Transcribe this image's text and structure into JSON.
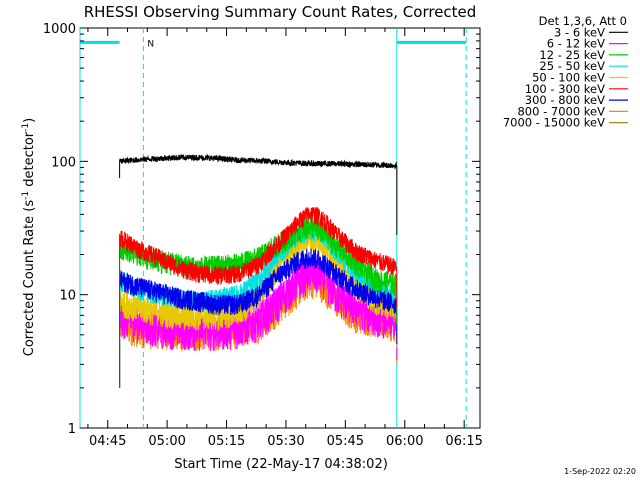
{
  "chart_data": {
    "type": "line",
    "title": "RHESSI Observing Summary Count Rates, Corrected",
    "xlabel": "Start Time (22-May-17 04:38:02)",
    "ylabel": "Corrected Count Rate (s⁻¹ detector⁻¹)",
    "ylabel_parts": [
      "Corrected Count Rate (s",
      "-1",
      " detector",
      "-1",
      ")"
    ],
    "yscale": "log",
    "ylim": [
      1,
      1000
    ],
    "y_tick_labels": [
      "1",
      "10",
      "100",
      "1000"
    ],
    "x_range_min": [
      0,
      101
    ],
    "x_ticks_min": [
      7,
      22,
      37,
      52,
      67,
      82,
      97
    ],
    "x_tick_labels": [
      "04:45",
      "05:00",
      "05:15",
      "05:30",
      "05:45",
      "06:00",
      "06:15"
    ],
    "legend_header": "Det 1,3,6, Att 0",
    "legend_position": "top-right",
    "footer_date": "1-Sep-2022 02:20",
    "night_marker": "N",
    "data_start_min": 10,
    "data_end_min": 80,
    "night_intervals_min": [
      [
        0,
        10
      ],
      [
        80,
        97.5
      ]
    ],
    "saa_lines_min": [
      16,
      97.5
    ],
    "series": [
      {
        "name": "3 - 6 keV",
        "color": "#000000",
        "points": [
          [
            10,
            100
          ],
          [
            15,
            103
          ],
          [
            20,
            105
          ],
          [
            25,
            107
          ],
          [
            30,
            107
          ],
          [
            35,
            105
          ],
          [
            40,
            102
          ],
          [
            45,
            101
          ],
          [
            50,
            99
          ],
          [
            55,
            97
          ],
          [
            60,
            96
          ],
          [
            65,
            96
          ],
          [
            70,
            95
          ],
          [
            75,
            94
          ],
          [
            80,
            93
          ]
        ]
      },
      {
        "name": "6 - 12 keV",
        "color": "#ff00ff",
        "points": [
          [
            10,
            7
          ],
          [
            15,
            6.2
          ],
          [
            20,
            5.8
          ],
          [
            25,
            5.6
          ],
          [
            30,
            5.5
          ],
          [
            35,
            5.5
          ],
          [
            40,
            5.7
          ],
          [
            45,
            6.5
          ],
          [
            50,
            9
          ],
          [
            55,
            13
          ],
          [
            58,
            15
          ],
          [
            61,
            14
          ],
          [
            65,
            10
          ],
          [
            70,
            8
          ],
          [
            75,
            7
          ],
          [
            80,
            6.5
          ]
        ]
      },
      {
        "name": "12 - 25 keV",
        "color": "#00cc00",
        "points": [
          [
            10,
            23
          ],
          [
            15,
            20
          ],
          [
            20,
            18
          ],
          [
            25,
            17
          ],
          [
            30,
            16
          ],
          [
            35,
            16.5
          ],
          [
            40,
            17
          ],
          [
            45,
            19
          ],
          [
            50,
            24
          ],
          [
            55,
            30
          ],
          [
            58,
            33
          ],
          [
            61,
            30
          ],
          [
            65,
            23
          ],
          [
            70,
            17
          ],
          [
            75,
            13
          ],
          [
            80,
            12
          ]
        ]
      },
      {
        "name": "25 - 50 keV",
        "color": "#00e0e0",
        "points": [
          [
            10,
            13
          ],
          [
            15,
            11
          ],
          [
            20,
            10
          ],
          [
            25,
            9.5
          ],
          [
            30,
            9
          ],
          [
            35,
            9.5
          ],
          [
            40,
            10
          ],
          [
            45,
            13
          ],
          [
            50,
            20
          ],
          [
            55,
            28
          ],
          [
            58,
            31
          ],
          [
            61,
            29
          ],
          [
            65,
            21
          ],
          [
            70,
            14
          ],
          [
            75,
            11
          ],
          [
            80,
            10
          ]
        ]
      },
      {
        "name": "50 - 100 keV",
        "color": "#e8c800",
        "points": [
          [
            10,
            9
          ],
          [
            15,
            8
          ],
          [
            20,
            7.5
          ],
          [
            25,
            7
          ],
          [
            30,
            7
          ],
          [
            35,
            7
          ],
          [
            40,
            7.5
          ],
          [
            45,
            10
          ],
          [
            50,
            16
          ],
          [
            55,
            24
          ],
          [
            58,
            27
          ],
          [
            61,
            25
          ],
          [
            65,
            18
          ],
          [
            70,
            12
          ],
          [
            75,
            9
          ],
          [
            80,
            8
          ]
        ]
      },
      {
        "name": "100 - 300 keV",
        "color": "#ff0000",
        "points": [
          [
            10,
            27
          ],
          [
            15,
            22
          ],
          [
            20,
            19
          ],
          [
            25,
            16
          ],
          [
            30,
            14.5
          ],
          [
            35,
            14
          ],
          [
            40,
            14.5
          ],
          [
            45,
            17
          ],
          [
            50,
            24
          ],
          [
            55,
            35
          ],
          [
            58,
            41
          ],
          [
            61,
            38
          ],
          [
            65,
            28
          ],
          [
            70,
            21
          ],
          [
            75,
            18
          ],
          [
            80,
            16
          ]
        ]
      },
      {
        "name": "300 - 800 keV",
        "color": "#0000ee",
        "points": [
          [
            10,
            13
          ],
          [
            15,
            11.5
          ],
          [
            20,
            10.5
          ],
          [
            25,
            9.5
          ],
          [
            30,
            9
          ],
          [
            35,
            8.5
          ],
          [
            40,
            8.5
          ],
          [
            45,
            10
          ],
          [
            50,
            14
          ],
          [
            55,
            18
          ],
          [
            58,
            19.5
          ],
          [
            61,
            18
          ],
          [
            65,
            14
          ],
          [
            70,
            11
          ],
          [
            75,
            9.5
          ],
          [
            80,
            8.5
          ]
        ]
      },
      {
        "name": "800 - 7000 keV",
        "color": "#ff8800",
        "points": [
          [
            10,
            6
          ],
          [
            15,
            5.5
          ],
          [
            20,
            5.3
          ],
          [
            25,
            5.2
          ],
          [
            30,
            5.2
          ],
          [
            35,
            5.3
          ],
          [
            40,
            5.4
          ],
          [
            45,
            6
          ],
          [
            50,
            8
          ],
          [
            55,
            11
          ],
          [
            58,
            13
          ],
          [
            61,
            12
          ],
          [
            65,
            9
          ],
          [
            70,
            7
          ],
          [
            75,
            6.5
          ],
          [
            80,
            6
          ]
        ]
      },
      {
        "name": "7000 - 15000 keV",
        "color": "#997700",
        "points": []
      }
    ]
  }
}
